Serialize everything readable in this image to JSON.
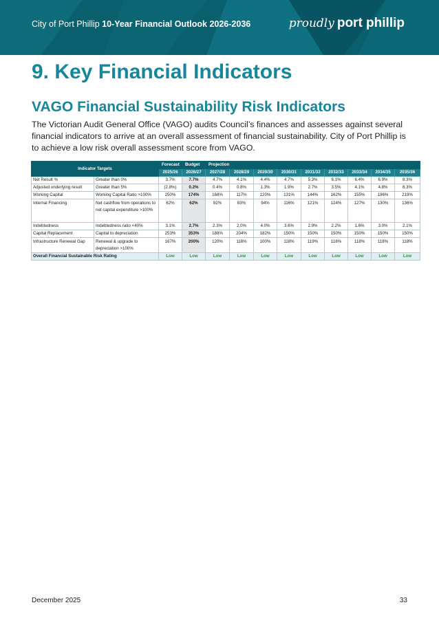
{
  "header": {
    "title_prefix": "City of Port Phillip",
    "title_bold": "10-Year Financial Outlook 2026-2036",
    "brand_script": "proudly",
    "brand_main": "port phillip",
    "colors": {
      "banner": "#0a5f6d",
      "heading": "#16879a",
      "rating_low": "#2e9a35"
    }
  },
  "headings": {
    "h1": "9. Key Financial Indicators",
    "h2": "VAGO Financial Sustainability Risk Indicators"
  },
  "intro": "The Victorian Audit General Office (VAGO) audits Council’s finances and assesses against several financial indicators to arrive at an overall assessment of financial sustainability. City of Port Phillip is to achieve a low risk overall assessment score from VAGO.",
  "table": {
    "targets_header": "Indicator Targets",
    "group_labels": {
      "forecast": "Forecast",
      "budget": "Budget",
      "projection": "Projection"
    },
    "years": [
      "2025/26",
      "2026/27",
      "2027/28",
      "2028/29",
      "2029/30",
      "2030/31",
      "2031/32",
      "2032/33",
      "2033/34",
      "2034/35",
      "2035/36"
    ],
    "rows": [
      {
        "name": "Net Result %",
        "target": "Greater than 0%",
        "values": [
          "3.7%",
          "7.7%",
          "4.7%",
          "4.1%",
          "4.4%",
          "4.7%",
          "5.3%",
          "6.1%",
          "6.4%",
          "6.9%",
          "8.3%"
        ]
      },
      {
        "name": "Adjusted underlying result",
        "target": "Greater than 5%",
        "values": [
          "(2.8%)",
          "0.2%",
          "0.4%",
          "0.8%",
          "1.3%",
          "1.9%",
          "2.7%",
          "3.5%",
          "4.1%",
          "4.8%",
          "6.3%"
        ]
      },
      {
        "name": "Working Capital",
        "target": "Working Capital Ratio >100%",
        "values": [
          "250%",
          "174%",
          "168%",
          "117%",
          "120%",
          "131%",
          "144%",
          "162%",
          "155%",
          "196%",
          "219%"
        ]
      },
      {
        "name": "Internal Financing",
        "target": "Net cashflow from operations to net capital expenditure >100%",
        "values": [
          "62%",
          "62%",
          "92%",
          "83%",
          "94%",
          "116%",
          "121%",
          "124%",
          "127%",
          "130%",
          "136%"
        ]
      },
      {
        "name": "Indebtedness",
        "target": "Indebtedness ratio <40%",
        "values": [
          "3.1%",
          "2.7%",
          "2.3%",
          "2.0%",
          "4.0%",
          "3.6%",
          "2.9%",
          "2.2%",
          "1.6%",
          "3.0%",
          "2.1%"
        ]
      },
      {
        "name": "Capital Replacement",
        "target": "Capital to depreciation",
        "values": [
          "253%",
          "353%",
          "188%",
          "204%",
          "182%",
          "150%",
          "150%",
          "150%",
          "150%",
          "150%",
          "150%"
        ]
      },
      {
        "name": "Infrastructure Renewal Gap",
        "target": "Renewal & upgrade to depreciation >100%",
        "values": [
          "167%",
          "200%",
          "120%",
          "116%",
          "100%",
          "118%",
          "119%",
          "118%",
          "118%",
          "118%",
          "118%"
        ]
      }
    ],
    "overall_label": "Overall Financial Sustainable Risk Rating",
    "overall_values": [
      "Low",
      "Low",
      "Low",
      "Low",
      "Low",
      "Low",
      "Low",
      "Low",
      "Low",
      "Low",
      "Low"
    ]
  },
  "footer": {
    "date": "December 2025",
    "page": "33"
  }
}
